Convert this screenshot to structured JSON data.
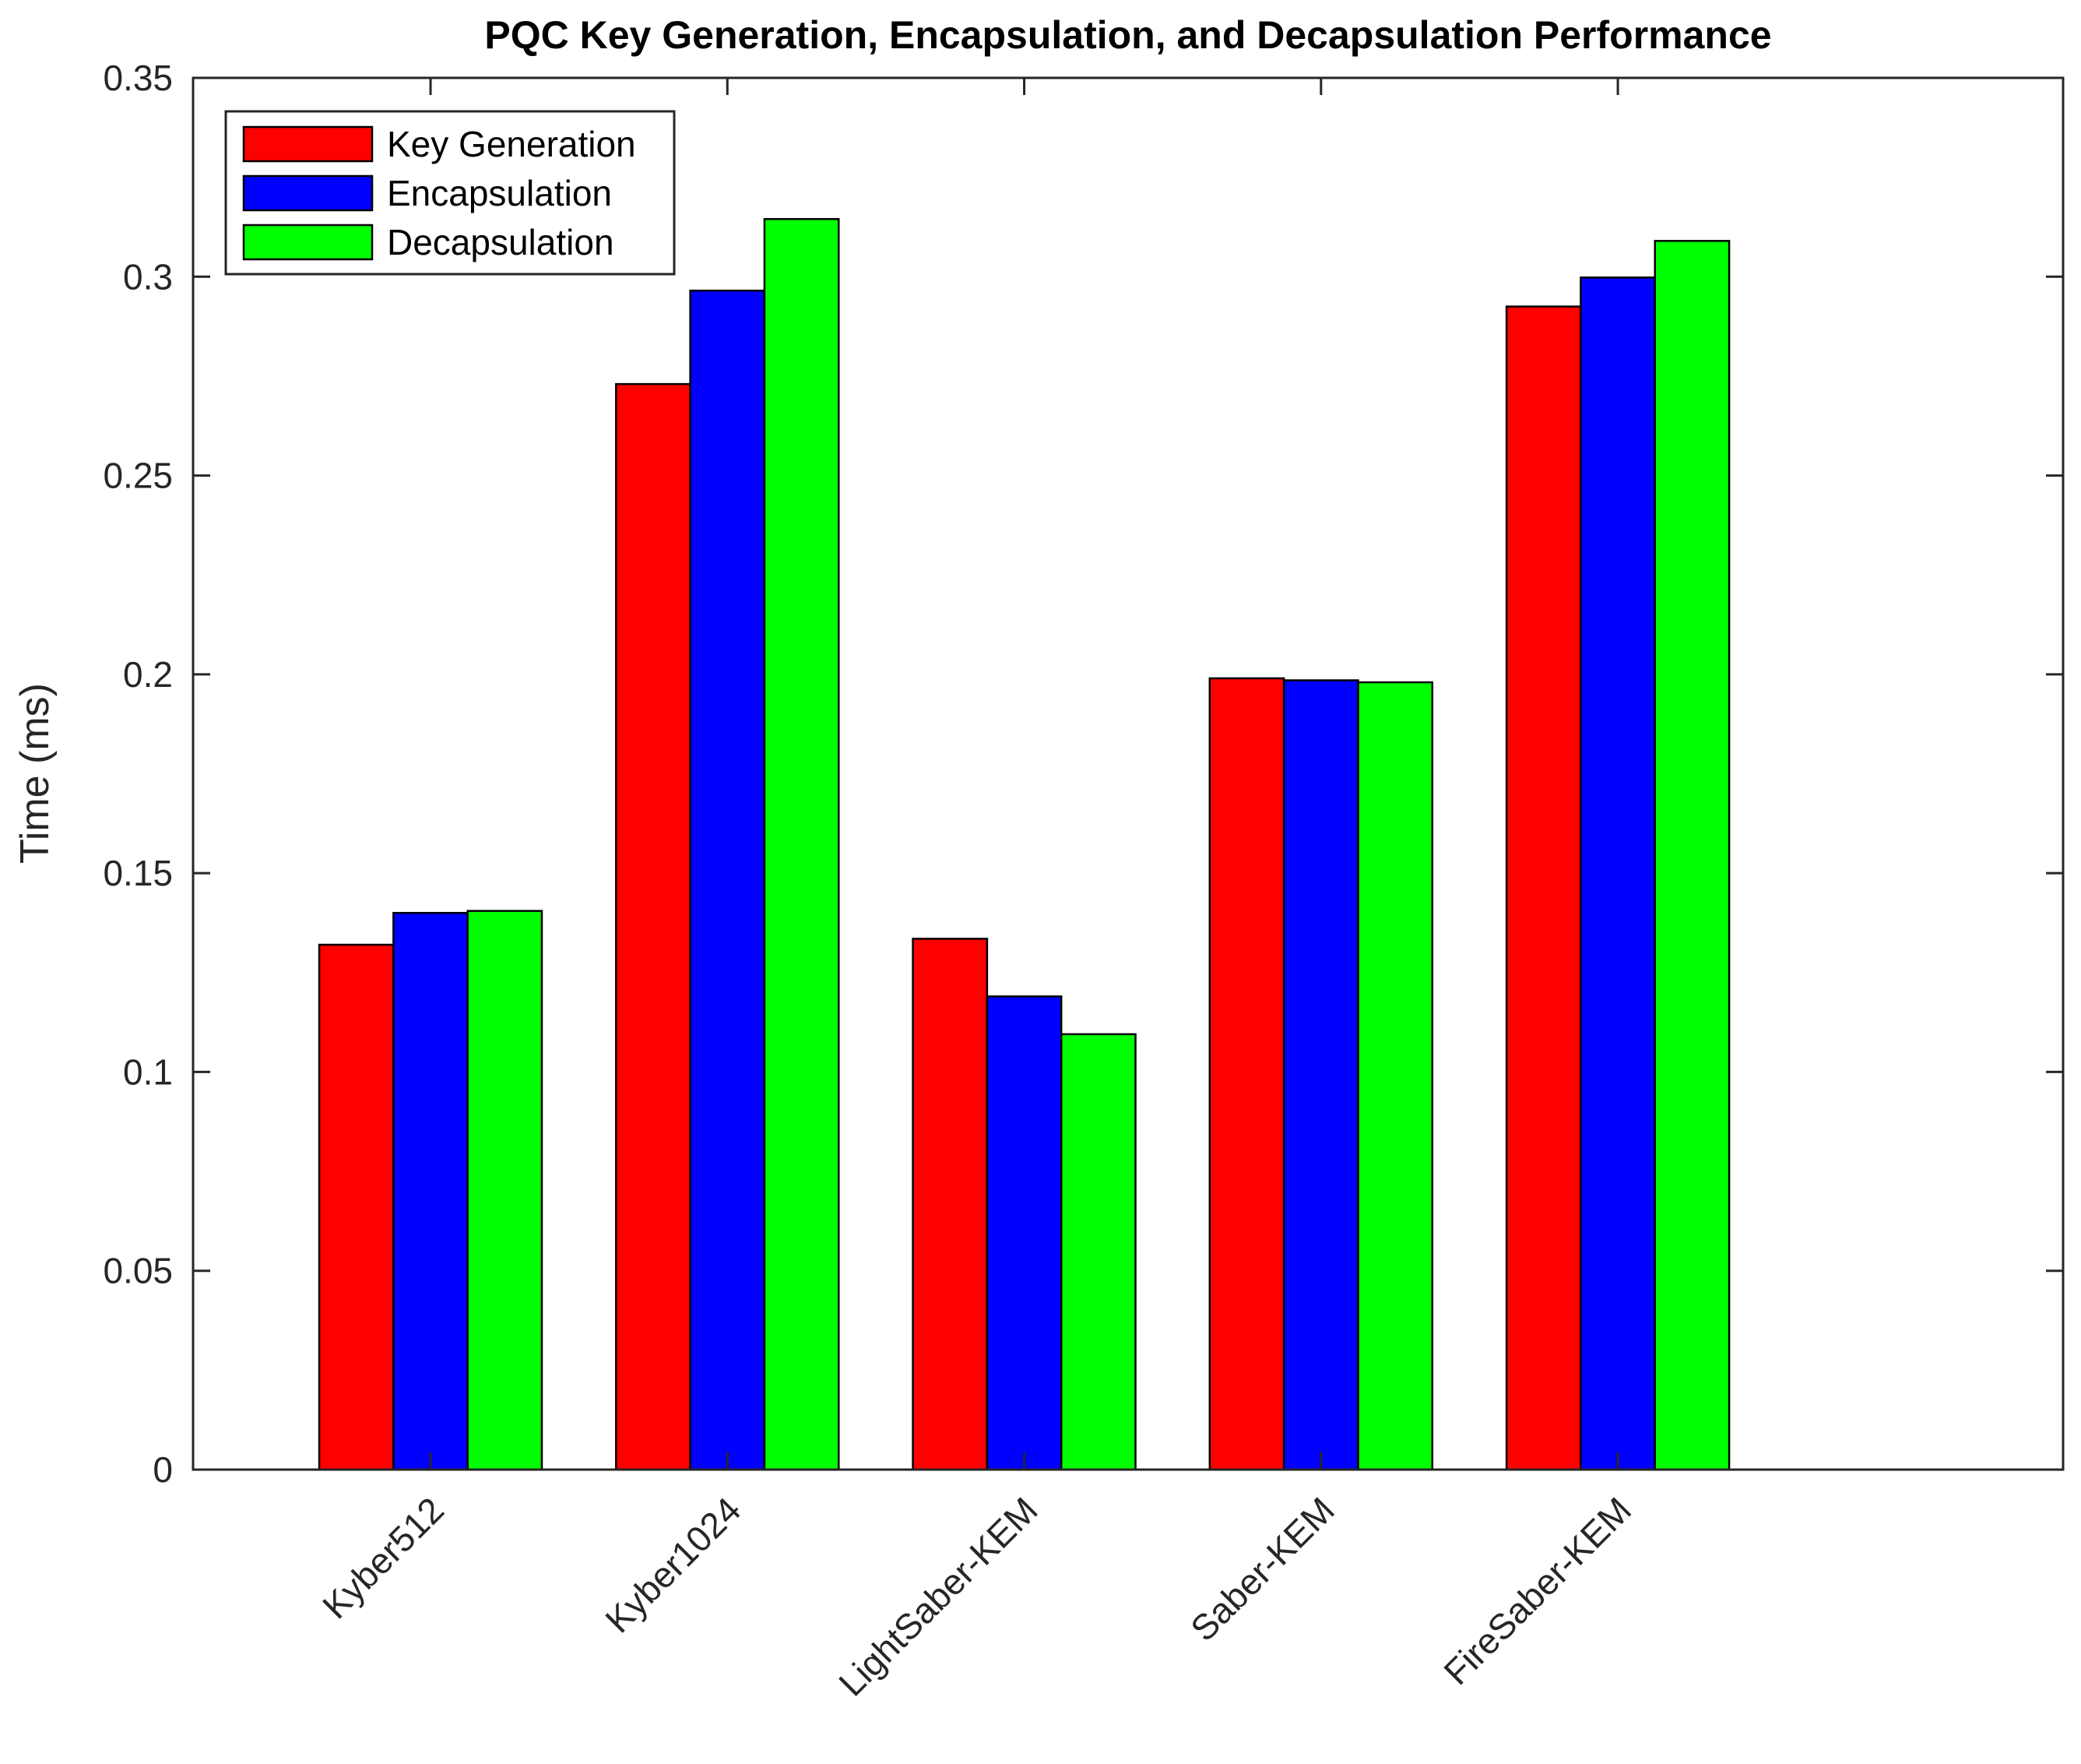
{
  "chart_data": {
    "type": "bar",
    "title": "PQC Key Generation, Encapsulation, and Decapsulation Performance",
    "xlabel": "",
    "ylabel": "Time (ms)",
    "ylim": [
      0,
      0.35
    ],
    "yticks": [
      0,
      0.05,
      0.1,
      0.15,
      0.2,
      0.25,
      0.3,
      0.35
    ],
    "ytick_labels": [
      "0",
      "0.05",
      "0.1",
      "0.15",
      "0.2",
      "0.25",
      "0.3",
      "0.35"
    ],
    "xlim": [
      0.2,
      6.5
    ],
    "categories": [
      "Kyber512",
      "Kyber1024",
      "LightSaber-KEM",
      "Saber-KEM",
      "FireSaber-KEM"
    ],
    "grid": false,
    "legend_position": "top-left",
    "series": [
      {
        "name": "Key Generation",
        "color": "#ff0000",
        "values": [
          0.132,
          0.273,
          0.1335,
          0.199,
          0.2925
        ]
      },
      {
        "name": "Encapsulation",
        "color": "#0000ff",
        "values": [
          0.14,
          0.2965,
          0.119,
          0.1985,
          0.2998
        ]
      },
      {
        "name": "Decapsulation",
        "color": "#00ff00",
        "values": [
          0.1405,
          0.3145,
          0.1095,
          0.198,
          0.309
        ]
      }
    ]
  }
}
